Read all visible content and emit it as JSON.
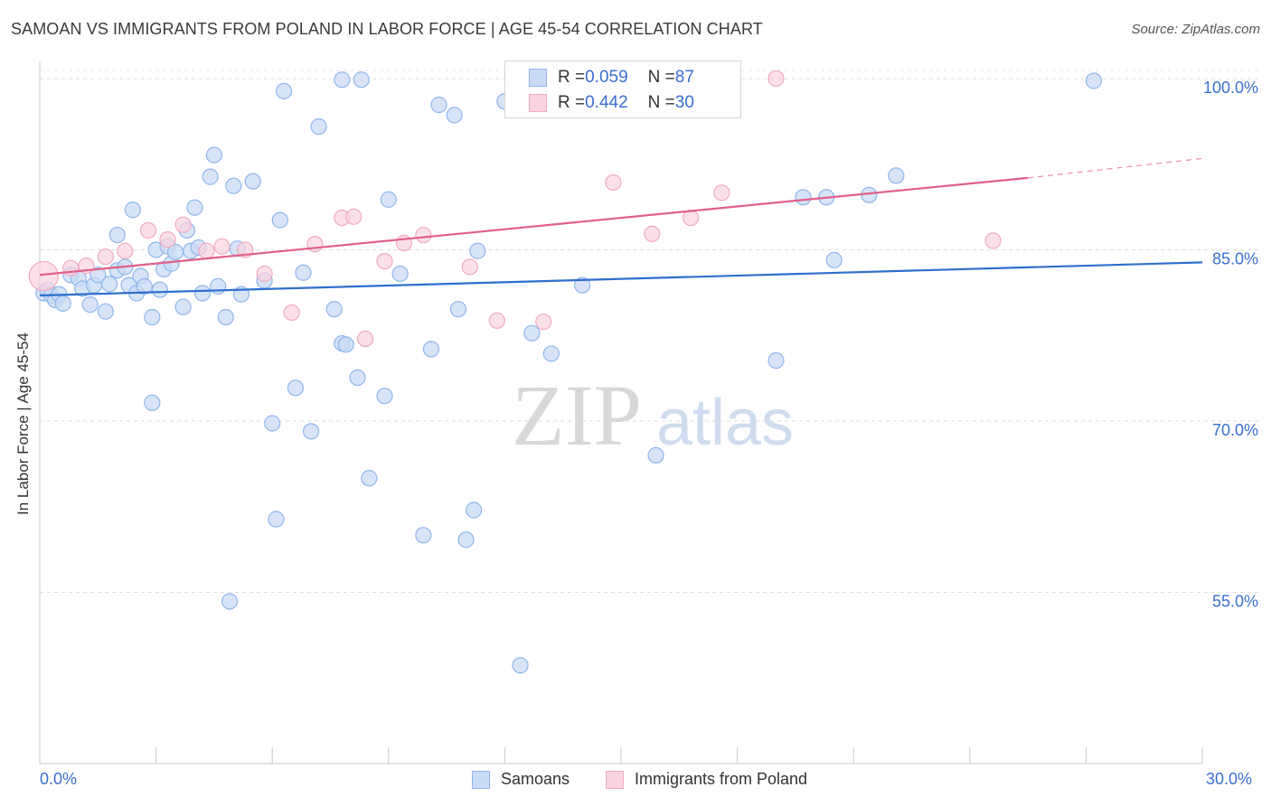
{
  "title": "SAMOAN VS IMMIGRANTS FROM POLAND IN LABOR FORCE | AGE 45-54 CORRELATION CHART",
  "source": "Source: ZipAtlas.com",
  "watermark": {
    "zip": "ZIP",
    "atlas": "atlas"
  },
  "legend": {
    "samoans": {
      "r_label": "R = ",
      "r_value": "0.059",
      "n_label": "N = ",
      "n_value": "87"
    },
    "poland": {
      "r_label": "R = ",
      "r_value": "0.442",
      "n_label": "N = ",
      "n_value": "30"
    }
  },
  "chart_data": {
    "type": "scatter",
    "title": "SAMOAN VS IMMIGRANTS FROM POLAND IN LABOR FORCE | AGE 45-54 CORRELATION CHART",
    "xlabel": "",
    "ylabel": "In Labor Force | Age 45-54",
    "xlim": [
      0,
      30
    ],
    "ylim": [
      40,
      101.5
    ],
    "x_tick_labels": [
      "0.0%",
      "30.0%"
    ],
    "y_ticks": [
      100,
      85,
      70,
      55
    ],
    "y_tick_labels": [
      "100.0%",
      "85.0%",
      "70.0%",
      "55.0%"
    ],
    "grid": true,
    "legend_position": "bottom",
    "series": [
      {
        "name": "Samoans",
        "color": "#8fb5ea",
        "trend": {
          "x": [
            0,
            30
          ],
          "y": [
            81.0,
            83.9
          ],
          "color": "#2f6fcc"
        },
        "points": [
          [
            0.1,
            81.2
          ],
          [
            0.2,
            81.5
          ],
          [
            0.3,
            81.0
          ],
          [
            0.4,
            80.6
          ],
          [
            0.5,
            81.1
          ],
          [
            0.6,
            80.3
          ],
          [
            0.8,
            82.8
          ],
          [
            1.0,
            82.5
          ],
          [
            1.1,
            81.6
          ],
          [
            1.3,
            80.2
          ],
          [
            1.4,
            81.9
          ],
          [
            1.5,
            82.8
          ],
          [
            1.7,
            79.6
          ],
          [
            1.8,
            82.0
          ],
          [
            2.0,
            83.2
          ],
          [
            2.0,
            86.3
          ],
          [
            2.2,
            83.5
          ],
          [
            2.3,
            81.9
          ],
          [
            2.4,
            88.5
          ],
          [
            2.5,
            81.2
          ],
          [
            2.6,
            82.7
          ],
          [
            2.7,
            81.8
          ],
          [
            2.9,
            79.1
          ],
          [
            3.0,
            85.0
          ],
          [
            3.1,
            81.5
          ],
          [
            3.2,
            83.3
          ],
          [
            3.3,
            85.3
          ],
          [
            3.4,
            83.8
          ],
          [
            3.5,
            84.8
          ],
          [
            3.7,
            80.0
          ],
          [
            3.8,
            86.7
          ],
          [
            3.9,
            84.9
          ],
          [
            4.0,
            88.7
          ],
          [
            4.1,
            85.2
          ],
          [
            4.2,
            81.2
          ],
          [
            4.4,
            91.4
          ],
          [
            4.5,
            93.3
          ],
          [
            4.6,
            81.8
          ],
          [
            4.8,
            79.1
          ],
          [
            5.0,
            90.6
          ],
          [
            5.1,
            85.1
          ],
          [
            5.2,
            81.1
          ],
          [
            5.5,
            91.0
          ],
          [
            5.8,
            82.3
          ],
          [
            6.2,
            87.6
          ],
          [
            6.8,
            83.0
          ],
          [
            6.6,
            72.9
          ],
          [
            6.0,
            69.8
          ],
          [
            6.1,
            61.4
          ],
          [
            7.0,
            69.1
          ],
          [
            7.2,
            95.8
          ],
          [
            7.6,
            79.8
          ],
          [
            7.8,
            76.8
          ],
          [
            7.9,
            76.7
          ],
          [
            8.2,
            73.8
          ],
          [
            8.5,
            65.0
          ],
          [
            8.9,
            72.2
          ],
          [
            9.0,
            89.4
          ],
          [
            9.3,
            82.9
          ],
          [
            9.9,
            60.0
          ],
          [
            10.1,
            76.3
          ],
          [
            10.3,
            97.7
          ],
          [
            10.7,
            96.8
          ],
          [
            10.8,
            79.8
          ],
          [
            11.0,
            59.6
          ],
          [
            11.2,
            62.2
          ],
          [
            11.3,
            84.9
          ],
          [
            12.4,
            48.6
          ],
          [
            12.7,
            77.7
          ],
          [
            13.2,
            75.9
          ],
          [
            14.0,
            81.9
          ],
          [
            14.5,
            99.8
          ],
          [
            15.9,
            67.0
          ],
          [
            16.0,
            99.8
          ],
          [
            19.0,
            75.3
          ],
          [
            19.7,
            89.6
          ],
          [
            20.3,
            89.6
          ],
          [
            20.5,
            84.1
          ],
          [
            21.4,
            89.8
          ],
          [
            22.1,
            91.5
          ],
          [
            27.2,
            99.8
          ],
          [
            6.3,
            98.9
          ],
          [
            7.8,
            99.9
          ],
          [
            8.3,
            99.9
          ],
          [
            12.0,
            98.0
          ],
          [
            4.9,
            54.2
          ],
          [
            2.9,
            71.6
          ]
        ]
      },
      {
        "name": "Immigrants from Poland",
        "color": "#f5afc6",
        "trend": {
          "x": [
            0,
            25.5
          ],
          "y": [
            82.8,
            91.3
          ],
          "color": "#e0608a",
          "dashed_extension_to": [
            30,
            93.0
          ]
        },
        "points": [
          [
            0.1,
            82.7
          ],
          [
            0.8,
            83.4
          ],
          [
            1.2,
            83.6
          ],
          [
            1.7,
            84.4
          ],
          [
            2.2,
            84.9
          ],
          [
            2.8,
            86.7
          ],
          [
            3.3,
            85.9
          ],
          [
            3.7,
            87.2
          ],
          [
            4.3,
            84.9
          ],
          [
            4.7,
            85.3
          ],
          [
            5.3,
            85.0
          ],
          [
            5.8,
            82.9
          ],
          [
            6.5,
            79.5
          ],
          [
            7.1,
            85.5
          ],
          [
            7.8,
            87.8
          ],
          [
            8.1,
            87.9
          ],
          [
            8.4,
            77.2
          ],
          [
            8.9,
            84.0
          ],
          [
            9.4,
            85.6
          ],
          [
            9.9,
            86.3
          ],
          [
            11.1,
            83.5
          ],
          [
            11.8,
            78.8
          ],
          [
            13.0,
            78.7
          ],
          [
            14.8,
            90.9
          ],
          [
            15.8,
            86.4
          ],
          [
            16.8,
            87.8
          ],
          [
            17.2,
            99.9
          ],
          [
            17.6,
            90.0
          ],
          [
            19.0,
            100.0
          ],
          [
            24.6,
            85.8
          ]
        ]
      }
    ]
  },
  "bottom_legend": {
    "samoans": "Samoans",
    "poland": "Immigrants from Poland"
  },
  "colors": {
    "blue_fill": "#c9dbf5",
    "blue_stroke": "#8fb5ea",
    "blue_line": "#2f6fcc",
    "pink_fill": "#f9d3e0",
    "pink_stroke": "#f0a9c2",
    "pink_line": "#e0608a",
    "tick_text": "#3a6fd0",
    "grid": "#dcdcdc"
  }
}
